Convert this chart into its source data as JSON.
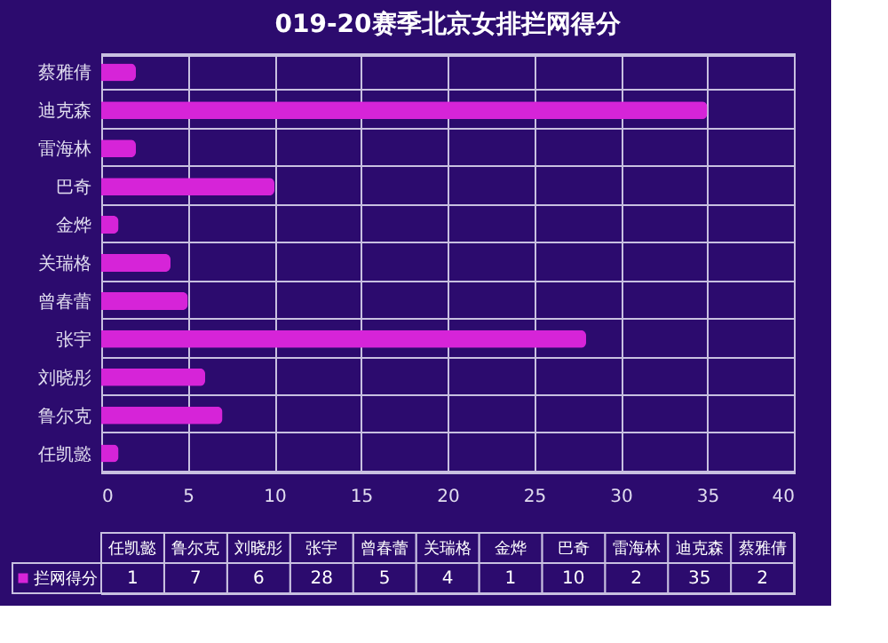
{
  "chart_data": {
    "type": "bar",
    "orientation": "horizontal",
    "title": "019-20赛季北京女排拦网得分",
    "categories": [
      "蔡雅倩",
      "迪克森",
      "雷海林",
      "巴奇",
      "金烨",
      "关瑞格",
      "曾春蕾",
      "张宇",
      "刘晓彤",
      "鲁尔克",
      "任凯懿"
    ],
    "series": [
      {
        "name": "拦网得分",
        "color": "#d624d8",
        "values": [
          2,
          35,
          2,
          10,
          1,
          4,
          5,
          28,
          6,
          7,
          1
        ]
      }
    ],
    "xlim": [
      0,
      40
    ],
    "xticks": [
      0,
      5,
      10,
      15,
      20,
      25,
      30,
      35,
      40
    ],
    "grid": true,
    "legend": "bottom",
    "annotations": [
      "1",
      "7",
      "6",
      "28",
      "5",
      "4",
      "1",
      "10",
      "2",
      "35",
      "2"
    ]
  }
}
